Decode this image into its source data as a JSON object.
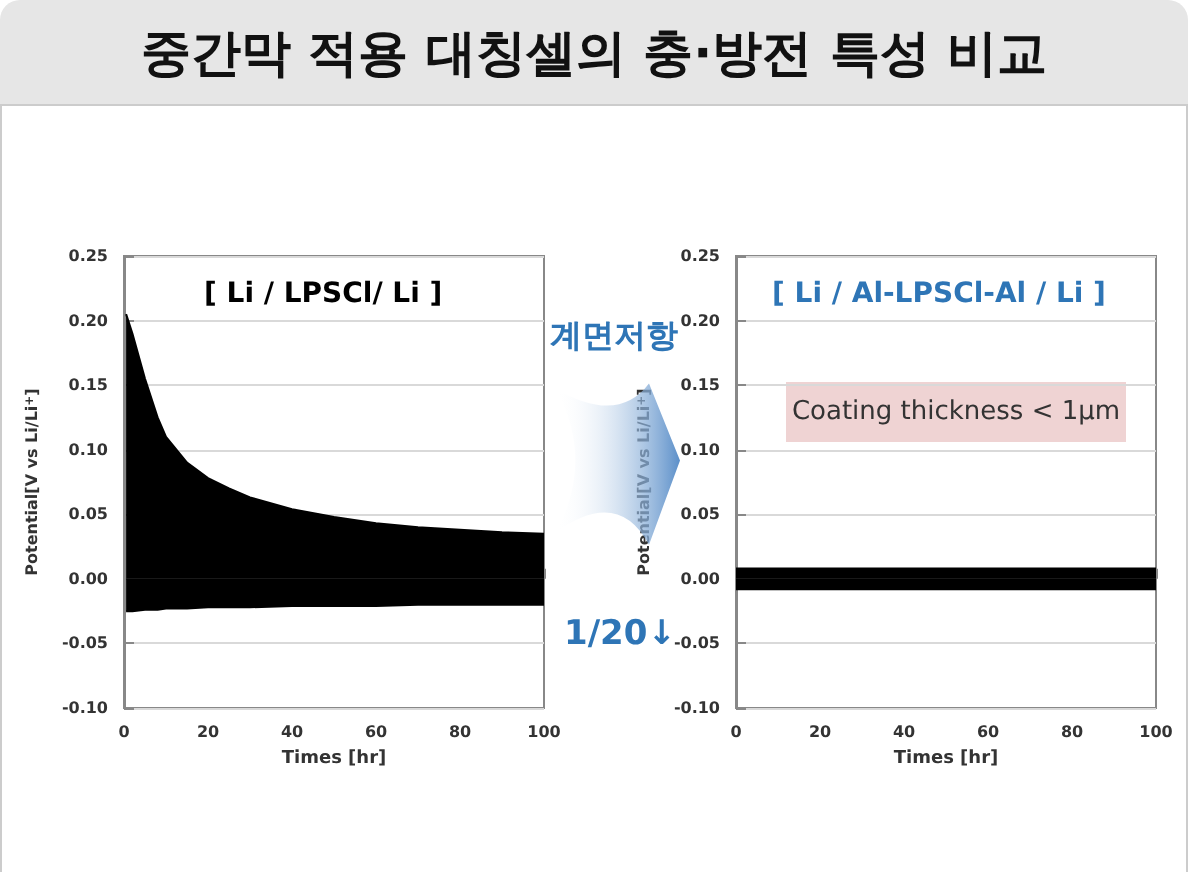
{
  "chart_data": [
    {
      "type": "area",
      "title": "중간막 적용 대칭셀의 충·방전 특성 비교",
      "xlabel": "Times [hr]",
      "ylabel": "Potential[V vs Li/Li$^{+}$]",
      "annotations": [
        "[ Li / LPSCl/ Li ]",
        "계면저항",
        "1/20↓"
      ],
      "xlim": [
        0,
        100
      ],
      "xticks": [
        0,
        20,
        40,
        60,
        80,
        100
      ],
      "ylim": [
        -0.1,
        0.25
      ],
      "yticks": [
        {
          "value": -0.1,
          "label": "-0.10"
        },
        -0.05,
        {
          "value": 0,
          "label": "0.00"
        },
        0.05,
        {
          "value": 0.1,
          "label": "0.10"
        },
        0.15,
        {
          "value": 0.2,
          "label": "0.20"
        },
        0.25
      ],
      "grid": "y",
      "series": [
        {
          "color": "#000000",
          "x": [
            0.5,
            2,
            5,
            8,
            10,
            15,
            20,
            25,
            30,
            40,
            50,
            60,
            70,
            80,
            90,
            100
          ],
          "values": [
            0.205,
            0.19,
            0.155,
            0.125,
            0.11,
            0.09,
            0.078,
            0.07,
            0.063,
            0.054,
            0.048,
            0.043,
            0.04,
            0.038,
            0.036,
            0.035
          ]
        },
        {
          "color": "#000000",
          "x": [
            0.5,
            2,
            5,
            8,
            10,
            15,
            20,
            25,
            30,
            40,
            50,
            60,
            70,
            80,
            90,
            100
          ],
          "values": [
            -0.025,
            -0.025,
            -0.024,
            -0.024,
            -0.023,
            -0.023,
            -0.022,
            -0.022,
            -0.022,
            -0.021,
            -0.021,
            -0.021,
            -0.02,
            -0.02,
            -0.02,
            -0.02
          ]
        }
      ]
    },
    {
      "type": "area",
      "xlabel": "Times [hr]",
      "ylabel": "Potential[V vs Li/Li$^{+}$]",
      "annotations": [
        "[ Li / Al-LPSCl-Al / Li ]",
        "Coating thickness < 1μm"
      ],
      "xlim": [
        0,
        100
      ],
      "xticks": [
        0,
        20,
        40,
        60,
        80,
        100
      ],
      "ylim": [
        -0.1,
        0.25
      ],
      "yticks": [
        {
          "value": -0.1,
          "label": "-0.10"
        },
        -0.05,
        {
          "value": 0,
          "label": "0.00"
        },
        0.05,
        {
          "value": 0.1,
          "label": "0.10"
        },
        0.15,
        {
          "value": 0.2,
          "label": "0.20"
        },
        0.25
      ],
      "grid": "y",
      "series": [
        {
          "color": "#000000",
          "x": [
            0,
            100
          ],
          "values": [
            0.008,
            0.008
          ]
        },
        {
          "color": "#000000",
          "x": [
            0,
            100
          ],
          "values": [
            -0.008,
            -0.008
          ]
        }
      ]
    }
  ]
}
